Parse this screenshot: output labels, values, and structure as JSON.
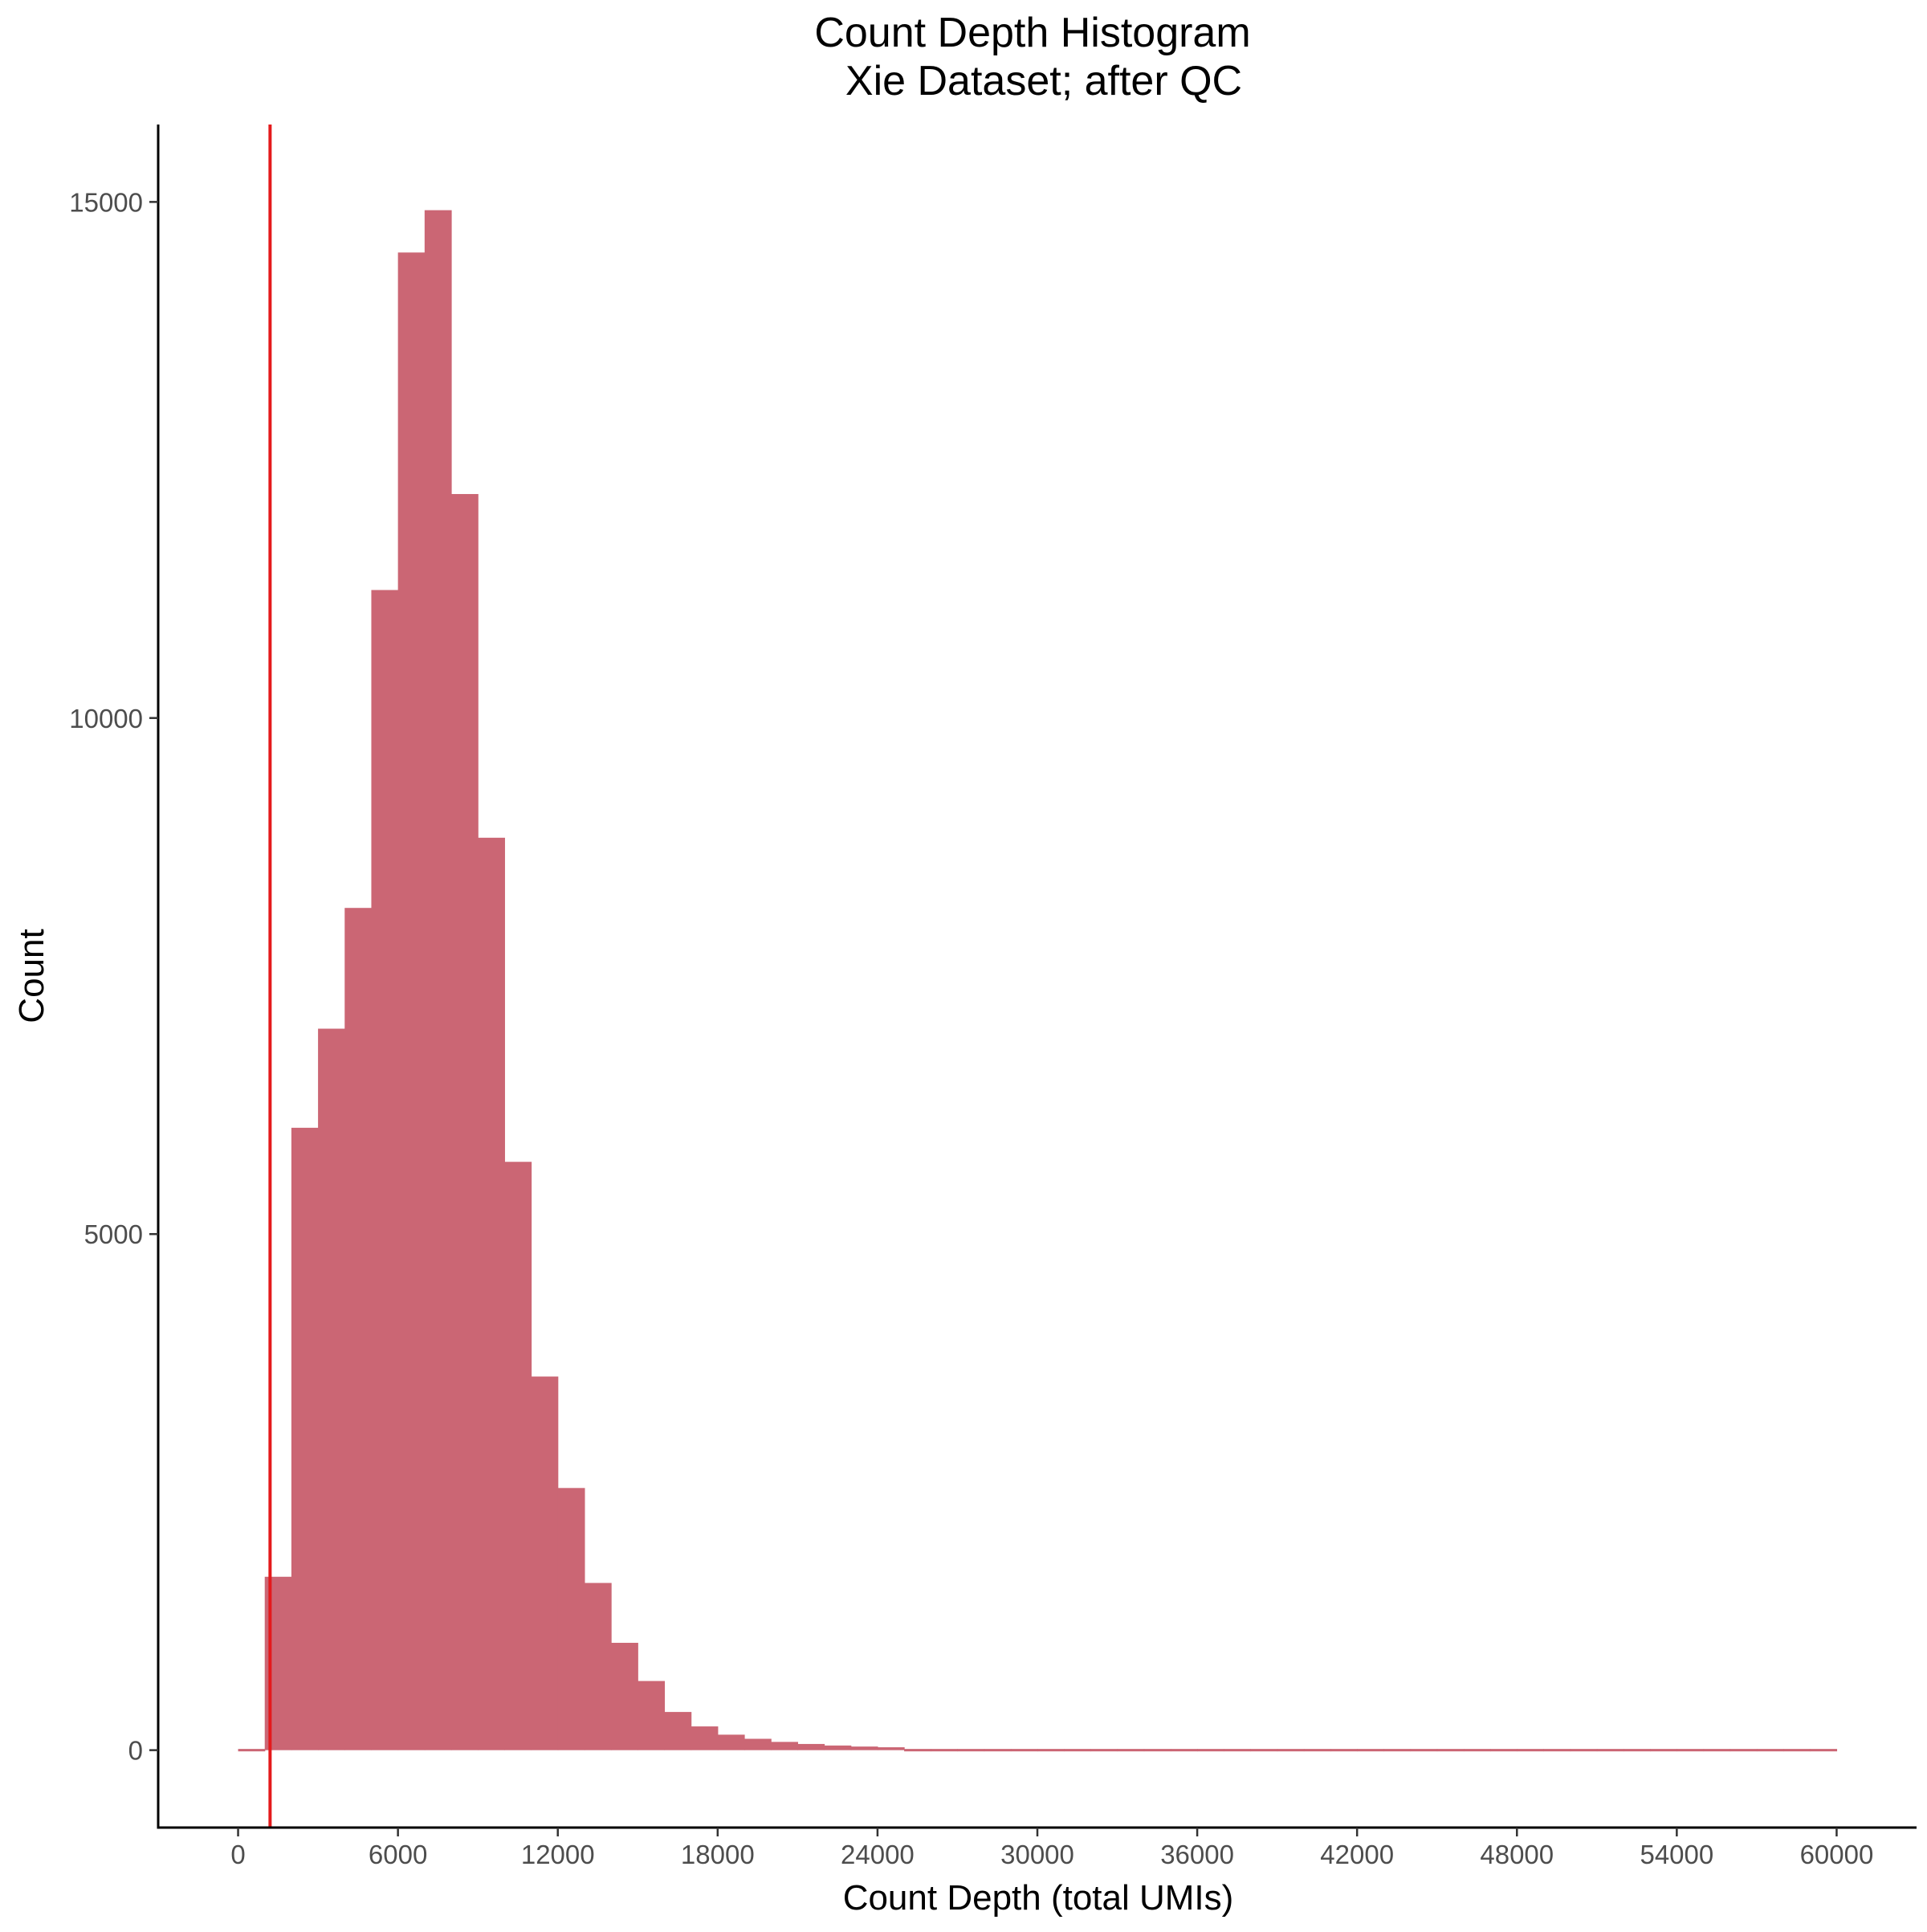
{
  "chart_data": {
    "type": "bar",
    "title": "Count Depth Histogram",
    "subtitle": "Xie Dataset; after QC",
    "xlabel": "Count Depth (total UMIs)",
    "ylabel": "Count",
    "xlim": [
      -3000,
      63000
    ],
    "ylim": [
      -750,
      15750
    ],
    "x_ticks": [
      0,
      6000,
      12000,
      18000,
      24000,
      30000,
      36000,
      42000,
      48000,
      54000,
      60000
    ],
    "x_tick_labels": [
      "0",
      "6000",
      "12000",
      "18000",
      "24000",
      "30000",
      "36000",
      "42000",
      "48000",
      "54000",
      "60000"
    ],
    "y_ticks": [
      0,
      5000,
      10000,
      15000
    ],
    "y_tick_labels": [
      "0",
      "5000",
      "10000",
      "15000"
    ],
    "bin_width": 1000,
    "bin_start": 0,
    "values": [
      0,
      1680,
      6030,
      6990,
      8160,
      11240,
      14510,
      14920,
      12170,
      8840,
      5700,
      3620,
      2540,
      1620,
      1040,
      670,
      370,
      230,
      150,
      110,
      80,
      60,
      45,
      35,
      28,
      22,
      18,
      14,
      11,
      9,
      8,
      7,
      6,
      5,
      5,
      4,
      4,
      3,
      3,
      3,
      2,
      2,
      2,
      2,
      2,
      2,
      1,
      1,
      1,
      1,
      1,
      1,
      1,
      1,
      1,
      1,
      1,
      1,
      1,
      1
    ],
    "bar_color": "#cb6674",
    "threshold_line": {
      "x": 1200,
      "color": "#e41a1c"
    },
    "grid": false,
    "legend": "none"
  }
}
